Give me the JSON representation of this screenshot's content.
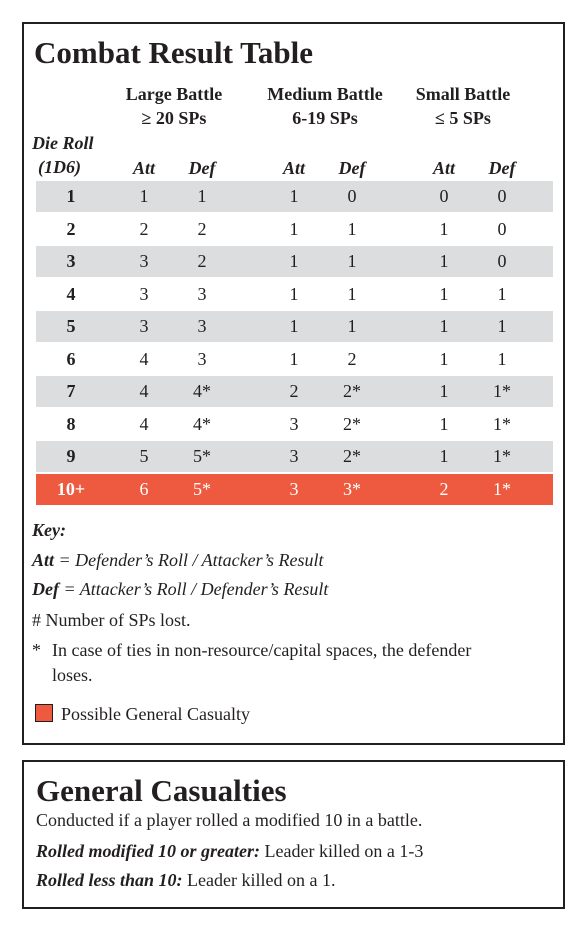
{
  "crt": {
    "title": "Combat Result Table",
    "battle_headers": [
      {
        "line1": "Large Battle",
        "line2": "≥ 20 SPs"
      },
      {
        "line1": "Medium Battle",
        "line2": "6-19 SPs"
      },
      {
        "line1": "Small Battle",
        "line2": "≤ 5 SPs"
      }
    ],
    "die_roll_label": {
      "line1": "Die Roll",
      "line2": "(1D6)"
    },
    "att_label": "Att",
    "def_label": "Def",
    "rows": [
      {
        "roll": "1",
        "cells": [
          "1",
          "1",
          "1",
          "0",
          "0",
          "0"
        ],
        "style": "shaded"
      },
      {
        "roll": "2",
        "cells": [
          "2",
          "2",
          "1",
          "1",
          "1",
          "0"
        ],
        "style": "plain"
      },
      {
        "roll": "3",
        "cells": [
          "3",
          "2",
          "1",
          "1",
          "1",
          "0"
        ],
        "style": "shaded"
      },
      {
        "roll": "4",
        "cells": [
          "3",
          "3",
          "1",
          "1",
          "1",
          "1"
        ],
        "style": "plain"
      },
      {
        "roll": "5",
        "cells": [
          "3",
          "3",
          "1",
          "1",
          "1",
          "1"
        ],
        "style": "shaded"
      },
      {
        "roll": "6",
        "cells": [
          "4",
          "3",
          "1",
          "2",
          "1",
          "1"
        ],
        "style": "plain"
      },
      {
        "roll": "7",
        "cells": [
          "4",
          "4*",
          "2",
          "2*",
          "1",
          "1*"
        ],
        "style": "shaded"
      },
      {
        "roll": "8",
        "cells": [
          "4",
          "4*",
          "3",
          "2*",
          "1",
          "1*"
        ],
        "style": "plain"
      },
      {
        "roll": "9",
        "cells": [
          "5",
          "5*",
          "3",
          "2*",
          "1",
          "1*"
        ],
        "style": "shaded"
      },
      {
        "roll": "10+",
        "cells": [
          "6",
          "5*",
          "3",
          "3*",
          "2",
          "1*"
        ],
        "style": "casualty"
      }
    ],
    "key": {
      "title": "Key:",
      "att_term": "Att",
      "att_text": " = Defender’s Roll / Attacker’s Result",
      "def_term": "Def",
      "def_text": " = Attacker’s Roll / Defender’s Result",
      "hash_note": "# Number of SPs lost.",
      "star_mark": "*",
      "star_note_line1": "In case of ties in non-resource/capital spaces, the defender",
      "star_note_line2": "loses.",
      "legend_label": "Possible General Casualty"
    }
  },
  "general_casualties": {
    "title": "General Casualties",
    "line1": "Conducted if a player rolled a modified 10 in a battle.",
    "line2_lead": "Rolled modified 10 or greater:",
    "line2_text": " Leader killed on a 1-3",
    "line3_lead": "Rolled less than 10:",
    "line3_text": " Leader killed on a 1."
  },
  "colors": {
    "row_shade": "#dcddde",
    "casualty_red": "#ee5a40",
    "ink": "#231f20"
  }
}
